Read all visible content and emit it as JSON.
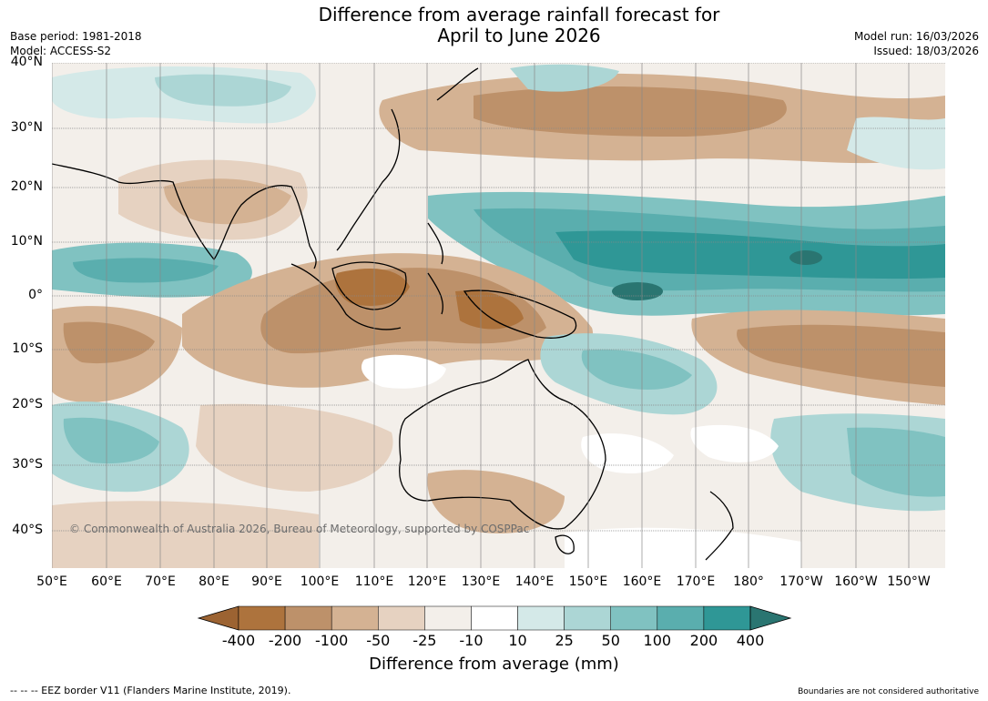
{
  "title_line1": "Difference from average rainfall forecast for",
  "title_line2": "April to June 2026",
  "base_period": "Base period: 1981-2018",
  "model": "Model: ACCESS-S2",
  "model_run": "Model run: 16/03/2026",
  "issued": "Issued: 18/03/2026",
  "lat_labels": [
    "40°N",
    "30°N",
    "20°N",
    "10°N",
    "0°",
    "10°S",
    "20°S",
    "30°S",
    "40°S"
  ],
  "lon_labels": [
    "50°E",
    "60°E",
    "70°E",
    "80°E",
    "90°E",
    "100°E",
    "110°E",
    "120°E",
    "130°E",
    "140°E",
    "150°E",
    "160°E",
    "170°E",
    "180°",
    "170°W",
    "160°W",
    "150°W"
  ],
  "copyright": "© Commonwealth of Australia 2026, Bureau of Meteorology, supported by COSPPac",
  "colorbar": {
    "labels": [
      "-400",
      "-200",
      "-100",
      "-50",
      "-25",
      "-10",
      "10",
      "25",
      "50",
      "100",
      "200",
      "400"
    ],
    "title": "Difference from average (mm)",
    "colors": [
      "#9c6332",
      "#ad733d",
      "#bd916a",
      "#d4b293",
      "#e6d2c1",
      "#f3efea",
      "#ffffff",
      "#d4e9e8",
      "#acd6d5",
      "#80c2c1",
      "#5aaeae",
      "#2f9796",
      "#2a7571"
    ]
  },
  "footer_left": "--  --  -- EEZ border V11 (Flanders Marine Institute, 2019).",
  "footer_right": "Boundaries are not considered authoritative"
}
